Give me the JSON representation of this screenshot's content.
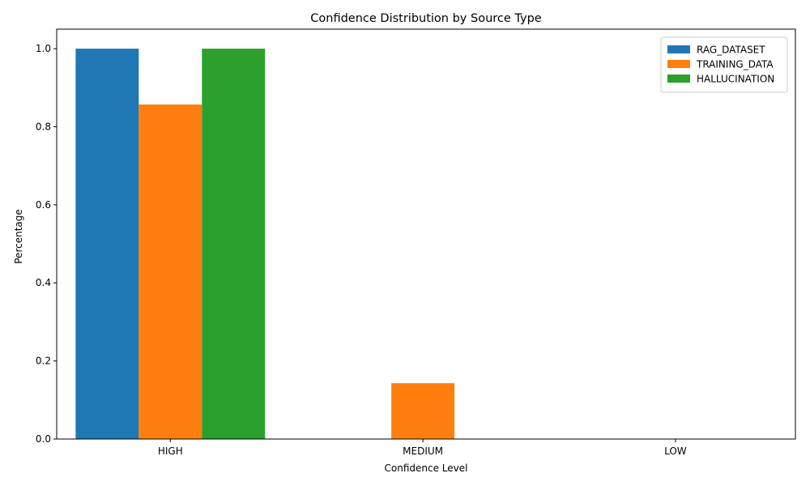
{
  "chart_data": {
    "type": "bar",
    "title": "Confidence Distribution by Source Type",
    "xlabel": "Confidence Level",
    "ylabel": "Percentage",
    "categories": [
      "HIGH",
      "MEDIUM",
      "LOW"
    ],
    "ylim": [
      0,
      1.05
    ],
    "yticks": [
      "0.0",
      "0.2",
      "0.4",
      "0.6",
      "0.8",
      "1.0"
    ],
    "grid": false,
    "legend_position": "top-right",
    "series": [
      {
        "name": "RAG_DATASET",
        "color": "#1f77b4",
        "values": [
          1.0,
          0.0,
          0.0
        ]
      },
      {
        "name": "TRAINING_DATA",
        "color": "#ff7f0e",
        "values": [
          0.857,
          0.143,
          0.0
        ]
      },
      {
        "name": "HALLUCINATION",
        "color": "#2ca02c",
        "values": [
          1.0,
          0.0,
          0.0
        ]
      }
    ]
  }
}
